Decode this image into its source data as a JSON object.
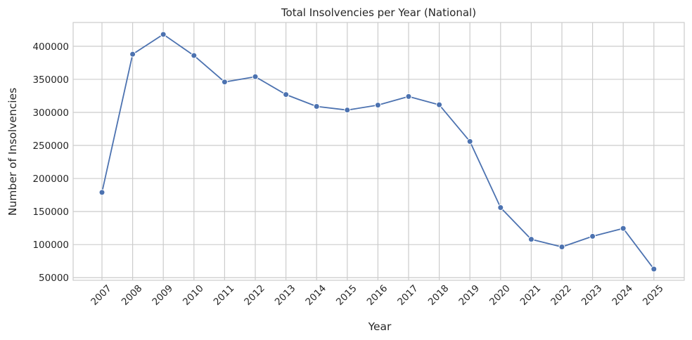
{
  "chart_data": {
    "type": "line",
    "title": "Total Insolvencies per Year (National)",
    "xlabel": "Year",
    "ylabel": "Number of Insolvencies",
    "x": [
      "2007",
      "2008",
      "2009",
      "2010",
      "2011",
      "2012",
      "2013",
      "2014",
      "2015",
      "2016",
      "2017",
      "2018",
      "2019",
      "2020",
      "2021",
      "2022",
      "2023",
      "2024",
      "2025"
    ],
    "yticks": [
      50000,
      100000,
      150000,
      200000,
      250000,
      300000,
      350000,
      400000
    ],
    "ylim": [
      46000,
      436000
    ],
    "grid": true,
    "legend": "none",
    "x_tick_rotation_deg": 45,
    "series": [
      {
        "values": [
          179000,
          388000,
          418000,
          386000,
          346000,
          354000,
          327000,
          309000,
          303500,
          311000,
          324000,
          311500,
          256000,
          156000,
          108000,
          96500,
          112500,
          124500,
          63000
        ],
        "color": "#4c72b0",
        "marker": "circle"
      }
    ]
  }
}
